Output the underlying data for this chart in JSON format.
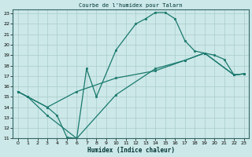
{
  "title": "Courbe de l'humidex pour Talarn",
  "xlabel": "Humidex (Indice chaleur)",
  "bg_color": "#cce8e8",
  "grid_color": "#aacccc",
  "line_color": "#1a7a6e",
  "xlim": [
    -0.5,
    23.5
  ],
  "ylim": [
    11,
    23.4
  ],
  "xticks": [
    0,
    1,
    2,
    3,
    4,
    5,
    6,
    7,
    8,
    9,
    10,
    11,
    12,
    13,
    14,
    15,
    16,
    17,
    18,
    19,
    20,
    21,
    22,
    23
  ],
  "yticks": [
    11,
    12,
    13,
    14,
    15,
    16,
    17,
    18,
    19,
    20,
    21,
    22,
    23
  ],
  "curve1_x": [
    0,
    1,
    3,
    4,
    5,
    6,
    7,
    8,
    10,
    12,
    13,
    14,
    15,
    16,
    17,
    18,
    19,
    20,
    21,
    22,
    23
  ],
  "curve1_y": [
    15.5,
    15.0,
    14.0,
    13.2,
    11.1,
    11.0,
    17.7,
    15.0,
    19.5,
    22.0,
    22.5,
    23.1,
    23.1,
    22.5,
    20.4,
    19.4,
    19.2,
    19.0,
    18.6,
    17.1,
    17.2
  ],
  "curve2_x": [
    0,
    1,
    3,
    6,
    10,
    14,
    17,
    19,
    22,
    23
  ],
  "curve2_y": [
    15.5,
    15.0,
    14.0,
    15.5,
    16.8,
    17.5,
    18.5,
    19.2,
    17.1,
    17.2
  ],
  "curve3_x": [
    0,
    1,
    3,
    6,
    10,
    14,
    17,
    19,
    22,
    23
  ],
  "curve3_y": [
    15.5,
    15.0,
    13.2,
    11.0,
    15.2,
    17.7,
    18.5,
    19.2,
    17.1,
    17.2
  ]
}
